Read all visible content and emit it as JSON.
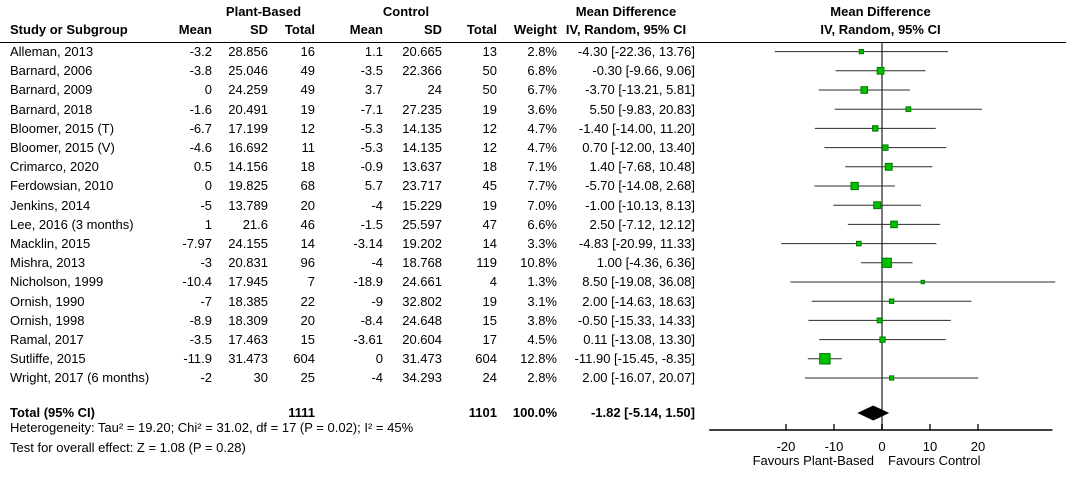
{
  "header": {
    "group1": "Plant-Based",
    "group2": "Control",
    "study_col": "Study or Subgroup",
    "mean": "Mean",
    "sd": "SD",
    "total": "Total",
    "weight": "Weight",
    "md_title": "Mean Difference",
    "md_subtitle": "IV, Random, 95% CI",
    "plot_title": "Mean Difference",
    "plot_subtitle": "IV, Random, 95% CI"
  },
  "totals": {
    "label": "Total (95% CI)",
    "n1": "1111",
    "n2": "1101",
    "weight": "100.0%",
    "md_ci": "-1.82 [-5.14, 1.50]"
  },
  "footnotes": {
    "heterogeneity": "Heterogeneity: Tau² = 19.20; Chi² = 31.02, df = 17 (P = 0.02); I² = 45%",
    "overall_effect": "Test for overall effect: Z = 1.08 (P = 0.28)"
  },
  "chart_data": {
    "type": "forest",
    "title": "Mean Difference",
    "subtitle": "IV, Random, 95% CI",
    "xlim": [
      -36,
      36
    ],
    "ticks": [
      -20,
      -10,
      0,
      10,
      20
    ],
    "favours_left": "Favours Plant-Based",
    "favours_right": "Favours Control",
    "studies": [
      {
        "label": "Alleman, 2013",
        "mean1": "-3.2",
        "sd1": "28.856",
        "n1": "16",
        "mean2": "1.1",
        "sd2": "20.665",
        "n2": "13",
        "weight": "2.8%",
        "md_ci": "-4.30 [-22.36, 13.76]",
        "md": -4.3,
        "lo": -22.36,
        "hi": 13.76,
        "w": 2.8
      },
      {
        "label": "Barnard, 2006",
        "mean1": "-3.8",
        "sd1": "25.046",
        "n1": "49",
        "mean2": "-3.5",
        "sd2": "22.366",
        "n2": "50",
        "weight": "6.8%",
        "md_ci": "-0.30 [-9.66, 9.06]",
        "md": -0.3,
        "lo": -9.66,
        "hi": 9.06,
        "w": 6.8
      },
      {
        "label": "Barnard, 2009",
        "mean1": "0",
        "sd1": "24.259",
        "n1": "49",
        "mean2": "3.7",
        "sd2": "24",
        "n2": "50",
        "weight": "6.7%",
        "md_ci": "-3.70 [-13.21, 5.81]",
        "md": -3.7,
        "lo": -13.21,
        "hi": 5.81,
        "w": 6.7
      },
      {
        "label": "Barnard, 2018",
        "mean1": "-1.6",
        "sd1": "20.491",
        "n1": "19",
        "mean2": "-7.1",
        "sd2": "27.235",
        "n2": "19",
        "weight": "3.6%",
        "md_ci": "5.50 [-9.83, 20.83]",
        "md": 5.5,
        "lo": -9.83,
        "hi": 20.83,
        "w": 3.6
      },
      {
        "label": "Bloomer, 2015 (T)",
        "mean1": "-6.7",
        "sd1": "17.199",
        "n1": "12",
        "mean2": "-5.3",
        "sd2": "14.135",
        "n2": "12",
        "weight": "4.7%",
        "md_ci": "-1.40 [-14.00, 11.20]",
        "md": -1.4,
        "lo": -14.0,
        "hi": 11.2,
        "w": 4.7
      },
      {
        "label": "Bloomer, 2015 (V)",
        "mean1": "-4.6",
        "sd1": "16.692",
        "n1": "11",
        "mean2": "-5.3",
        "sd2": "14.135",
        "n2": "12",
        "weight": "4.7%",
        "md_ci": "0.70 [-12.00, 13.40]",
        "md": 0.7,
        "lo": -12.0,
        "hi": 13.4,
        "w": 4.7
      },
      {
        "label": "Crimarco, 2020",
        "mean1": "0.5",
        "sd1": "14.156",
        "n1": "18",
        "mean2": "-0.9",
        "sd2": "13.637",
        "n2": "18",
        "weight": "7.1%",
        "md_ci": "1.40 [-7.68, 10.48]",
        "md": 1.4,
        "lo": -7.68,
        "hi": 10.48,
        "w": 7.1
      },
      {
        "label": "Ferdowsian, 2010",
        "mean1": "0",
        "sd1": "19.825",
        "n1": "68",
        "mean2": "5.7",
        "sd2": "23.717",
        "n2": "45",
        "weight": "7.7%",
        "md_ci": "-5.70 [-14.08, 2.68]",
        "md": -5.7,
        "lo": -14.08,
        "hi": 2.68,
        "w": 7.7
      },
      {
        "label": "Jenkins, 2014",
        "mean1": "-5",
        "sd1": "13.789",
        "n1": "20",
        "mean2": "-4",
        "sd2": "15.229",
        "n2": "19",
        "weight": "7.0%",
        "md_ci": "-1.00 [-10.13, 8.13]",
        "md": -1.0,
        "lo": -10.13,
        "hi": 8.13,
        "w": 7.0
      },
      {
        "label": "Lee, 2016 (3 months)",
        "mean1": "1",
        "sd1": "21.6",
        "n1": "46",
        "mean2": "-1.5",
        "sd2": "25.597",
        "n2": "47",
        "weight": "6.6%",
        "md_ci": "2.50 [-7.12, 12.12]",
        "md": 2.5,
        "lo": -7.12,
        "hi": 12.12,
        "w": 6.6
      },
      {
        "label": "Macklin, 2015",
        "mean1": "-7.97",
        "sd1": "24.155",
        "n1": "14",
        "mean2": "-3.14",
        "sd2": "19.202",
        "n2": "14",
        "weight": "3.3%",
        "md_ci": "-4.83 [-20.99, 11.33]",
        "md": -4.83,
        "lo": -20.99,
        "hi": 11.33,
        "w": 3.3
      },
      {
        "label": "Mishra, 2013",
        "mean1": "-3",
        "sd1": "20.831",
        "n1": "96",
        "mean2": "-4",
        "sd2": "18.768",
        "n2": "119",
        "weight": "10.8%",
        "md_ci": "1.00 [-4.36, 6.36]",
        "md": 1.0,
        "lo": -4.36,
        "hi": 6.36,
        "w": 10.8
      },
      {
        "label": "Nicholson, 1999",
        "mean1": "-10.4",
        "sd1": "17.945",
        "n1": "7",
        "mean2": "-18.9",
        "sd2": "24.661",
        "n2": "4",
        "weight": "1.3%",
        "md_ci": "8.50 [-19.08, 36.08]",
        "md": 8.5,
        "lo": -19.08,
        "hi": 36.08,
        "w": 1.3
      },
      {
        "label": "Ornish, 1990",
        "mean1": "-7",
        "sd1": "18.385",
        "n1": "22",
        "mean2": "-9",
        "sd2": "32.802",
        "n2": "19",
        "weight": "3.1%",
        "md_ci": "2.00 [-14.63, 18.63]",
        "md": 2.0,
        "lo": -14.63,
        "hi": 18.63,
        "w": 3.1
      },
      {
        "label": "Ornish, 1998",
        "mean1": "-8.9",
        "sd1": "18.309",
        "n1": "20",
        "mean2": "-8.4",
        "sd2": "24.648",
        "n2": "15",
        "weight": "3.8%",
        "md_ci": "-0.50 [-15.33, 14.33]",
        "md": -0.5,
        "lo": -15.33,
        "hi": 14.33,
        "w": 3.8
      },
      {
        "label": "Ramal, 2017",
        "mean1": "-3.5",
        "sd1": "17.463",
        "n1": "15",
        "mean2": "-3.61",
        "sd2": "20.604",
        "n2": "17",
        "weight": "4.5%",
        "md_ci": "0.11 [-13.08, 13.30]",
        "md": 0.11,
        "lo": -13.08,
        "hi": 13.3,
        "w": 4.5
      },
      {
        "label": "Sutliffe, 2015",
        "mean1": "-11.9",
        "sd1": "31.473",
        "n1": "604",
        "mean2": "0",
        "sd2": "31.473",
        "n2": "604",
        "weight": "12.8%",
        "md_ci": "-11.90 [-15.45, -8.35]",
        "md": -11.9,
        "lo": -15.45,
        "hi": -8.35,
        "w": 12.8
      },
      {
        "label": "Wright, 2017 (6 months)",
        "mean1": "-2",
        "sd1": "30",
        "n1": "25",
        "mean2": "-4",
        "sd2": "34.293",
        "n2": "24",
        "weight": "2.8%",
        "md_ci": "2.00 [-16.07, 20.07]",
        "md": 2.0,
        "lo": -16.07,
        "hi": 20.07,
        "w": 2.8
      }
    ],
    "total": {
      "md": -1.82,
      "lo": -5.14,
      "hi": 1.5
    }
  },
  "colors": {
    "marker": "#00c000",
    "marker_border": "#007a00",
    "diamond": "#000000",
    "ci_line": "#2b2b2b",
    "zero_line": "#777777",
    "axis": "#000000"
  }
}
